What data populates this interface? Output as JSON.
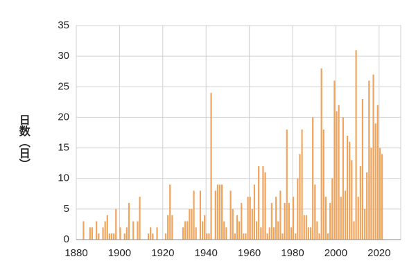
{
  "chart_data": {
    "type": "bar",
    "y_label": "日数（日）",
    "color": "#f0a35a",
    "x": [
      1883,
      1886,
      1887,
      1889,
      1890,
      1892,
      1893,
      1894,
      1895,
      1896,
      1897,
      1898,
      1900,
      1902,
      1903,
      1904,
      1906,
      1908,
      1909,
      1913,
      1914,
      1915,
      1917,
      1921,
      1922,
      1923,
      1924,
      1929,
      1930,
      1931,
      1932,
      1933,
      1934,
      1935,
      1937,
      1938,
      1939,
      1940,
      1941,
      1942,
      1944,
      1945,
      1946,
      1947,
      1948,
      1949,
      1951,
      1952,
      1953,
      1954,
      1955,
      1956,
      1957,
      1958,
      1959,
      1960,
      1961,
      1962,
      1963,
      1964,
      1965,
      1966,
      1967,
      1968,
      1969,
      1970,
      1971,
      1972,
      1973,
      1974,
      1975,
      1976,
      1977,
      1978,
      1979,
      1980,
      1981,
      1982,
      1983,
      1984,
      1985,
      1986,
      1987,
      1988,
      1989,
      1990,
      1991,
      1992,
      1993,
      1994,
      1995,
      1996,
      1997,
      1998,
      1999,
      2000,
      2001,
      2002,
      2003,
      2004,
      2005,
      2006,
      2007,
      2008,
      2009,
      2010,
      2011,
      2012,
      2013,
      2014,
      2015,
      2016,
      2017,
      2018,
      2019,
      2020,
      2021
    ],
    "values": [
      3,
      2,
      2,
      3,
      1,
      2,
      3,
      4,
      1,
      1,
      1,
      5,
      2,
      1,
      2,
      6,
      3,
      3,
      7,
      1,
      2,
      1,
      2,
      1,
      4,
      9,
      4,
      2,
      3,
      3,
      5,
      5,
      8,
      2,
      8,
      3,
      4,
      1,
      1,
      24,
      8,
      9,
      9,
      9,
      3,
      2,
      8,
      5,
      1,
      4,
      3,
      6,
      1,
      1,
      7,
      7,
      5,
      9,
      3,
      12,
      2,
      12,
      11,
      1,
      2,
      6,
      2,
      7,
      3,
      8,
      1,
      6,
      18,
      6,
      2,
      7,
      1,
      10,
      14,
      18,
      4,
      4,
      2,
      2,
      20,
      9,
      3,
      1,
      28,
      18,
      7,
      1,
      6,
      10,
      26,
      21,
      22,
      7,
      20,
      8,
      17,
      16,
      13,
      3,
      31,
      7,
      12,
      23,
      5,
      11,
      26,
      15,
      27,
      19,
      22,
      15,
      14
    ],
    "xlim": [
      1880,
      2030
    ],
    "xticks": [
      1880,
      1900,
      1920,
      1940,
      1960,
      1980,
      2000,
      2020
    ],
    "ylim": [
      0,
      35
    ],
    "yticks": [
      0,
      5,
      10,
      15,
      20,
      25,
      30,
      35
    ],
    "grid": true
  }
}
